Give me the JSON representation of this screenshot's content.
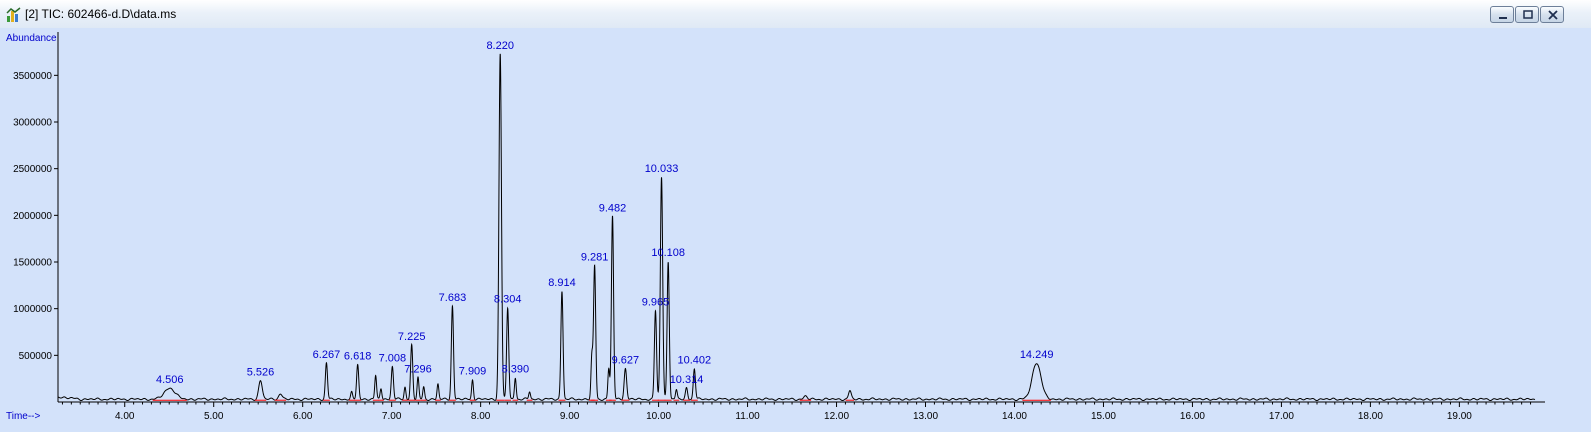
{
  "window": {
    "title": "[2] TIC: 602466-d.D\\data.ms",
    "icon": "chromatogram-app-icon",
    "controls": [
      "minimize-icon",
      "restore-icon",
      "close-icon"
    ]
  },
  "chart_data": {
    "type": "line",
    "ylabel": "Abundance",
    "xlabel": "Time-->",
    "xlim": [
      3.25,
      19.85
    ],
    "ylim": [
      0,
      3900000
    ],
    "x_ticks": [
      "4.00",
      "5.00",
      "6.00",
      "7.00",
      "8.00",
      "9.00",
      "10.00",
      "11.00",
      "12.00",
      "13.00",
      "14.00",
      "15.00",
      "16.00",
      "17.00",
      "18.00",
      "19.00"
    ],
    "y_ticks": [
      "500000",
      "1000000",
      "1500000",
      "2000000",
      "2500000",
      "3000000",
      "3500000"
    ],
    "baseline": 30000,
    "series_color": "#000000",
    "integration_color": "#ff0000",
    "label_color": "#0000cc",
    "peaks": [
      {
        "rt": 4.506,
        "height": 120000,
        "width": 0.06,
        "label": "4.506"
      },
      {
        "rt": 5.526,
        "height": 200000,
        "width": 0.02,
        "label": "5.526"
      },
      {
        "rt": 5.75,
        "height": 60000,
        "width": 0.02,
        "label": ""
      },
      {
        "rt": 6.267,
        "height": 390000,
        "width": 0.012,
        "label": "6.267"
      },
      {
        "rt": 6.55,
        "height": 70000,
        "width": 0.01,
        "label": ""
      },
      {
        "rt": 6.618,
        "height": 370000,
        "width": 0.012,
        "label": "6.618"
      },
      {
        "rt": 6.82,
        "height": 250000,
        "width": 0.01,
        "label": ""
      },
      {
        "rt": 6.88,
        "height": 120000,
        "width": 0.01,
        "label": ""
      },
      {
        "rt": 7.008,
        "height": 350000,
        "width": 0.012,
        "label": "7.008"
      },
      {
        "rt": 7.15,
        "height": 130000,
        "width": 0.01,
        "label": ""
      },
      {
        "rt": 7.225,
        "height": 580000,
        "width": 0.012,
        "label": "7.225"
      },
      {
        "rt": 7.296,
        "height": 230000,
        "width": 0.01,
        "label": "7.296"
      },
      {
        "rt": 7.36,
        "height": 130000,
        "width": 0.01,
        "label": ""
      },
      {
        "rt": 7.52,
        "height": 160000,
        "width": 0.01,
        "label": ""
      },
      {
        "rt": 7.683,
        "height": 1000000,
        "width": 0.012,
        "label": "7.683"
      },
      {
        "rt": 7.909,
        "height": 210000,
        "width": 0.01,
        "label": "7.909"
      },
      {
        "rt": 8.22,
        "height": 3700000,
        "width": 0.014,
        "label": "8.220"
      },
      {
        "rt": 8.304,
        "height": 980000,
        "width": 0.012,
        "label": "8.304"
      },
      {
        "rt": 8.39,
        "height": 230000,
        "width": 0.01,
        "label": "8.390"
      },
      {
        "rt": 8.55,
        "height": 80000,
        "width": 0.01,
        "label": ""
      },
      {
        "rt": 8.914,
        "height": 1160000,
        "width": 0.012,
        "label": "8.914"
      },
      {
        "rt": 9.25,
        "height": 450000,
        "width": 0.01,
        "label": ""
      },
      {
        "rt": 9.281,
        "height": 1430000,
        "width": 0.012,
        "label": "9.281"
      },
      {
        "rt": 9.44,
        "height": 330000,
        "width": 0.01,
        "label": ""
      },
      {
        "rt": 9.482,
        "height": 1960000,
        "width": 0.012,
        "label": "9.482"
      },
      {
        "rt": 9.627,
        "height": 330000,
        "width": 0.014,
        "label": "9.627"
      },
      {
        "rt": 9.965,
        "height": 950000,
        "width": 0.012,
        "label": "9.965"
      },
      {
        "rt": 10.033,
        "height": 2380000,
        "width": 0.013,
        "label": "10.033"
      },
      {
        "rt": 10.108,
        "height": 1480000,
        "width": 0.012,
        "label": "10.108"
      },
      {
        "rt": 10.2,
        "height": 100000,
        "width": 0.01,
        "label": ""
      },
      {
        "rt": 10.314,
        "height": 120000,
        "width": 0.012,
        "label": "10.314"
      },
      {
        "rt": 10.402,
        "height": 330000,
        "width": 0.012,
        "label": "10.402"
      },
      {
        "rt": 11.65,
        "height": 30000,
        "width": 0.02,
        "label": ""
      },
      {
        "rt": 12.15,
        "height": 90000,
        "width": 0.015,
        "label": ""
      },
      {
        "rt": 14.249,
        "height": 390000,
        "width": 0.05,
        "label": "14.249"
      }
    ]
  }
}
